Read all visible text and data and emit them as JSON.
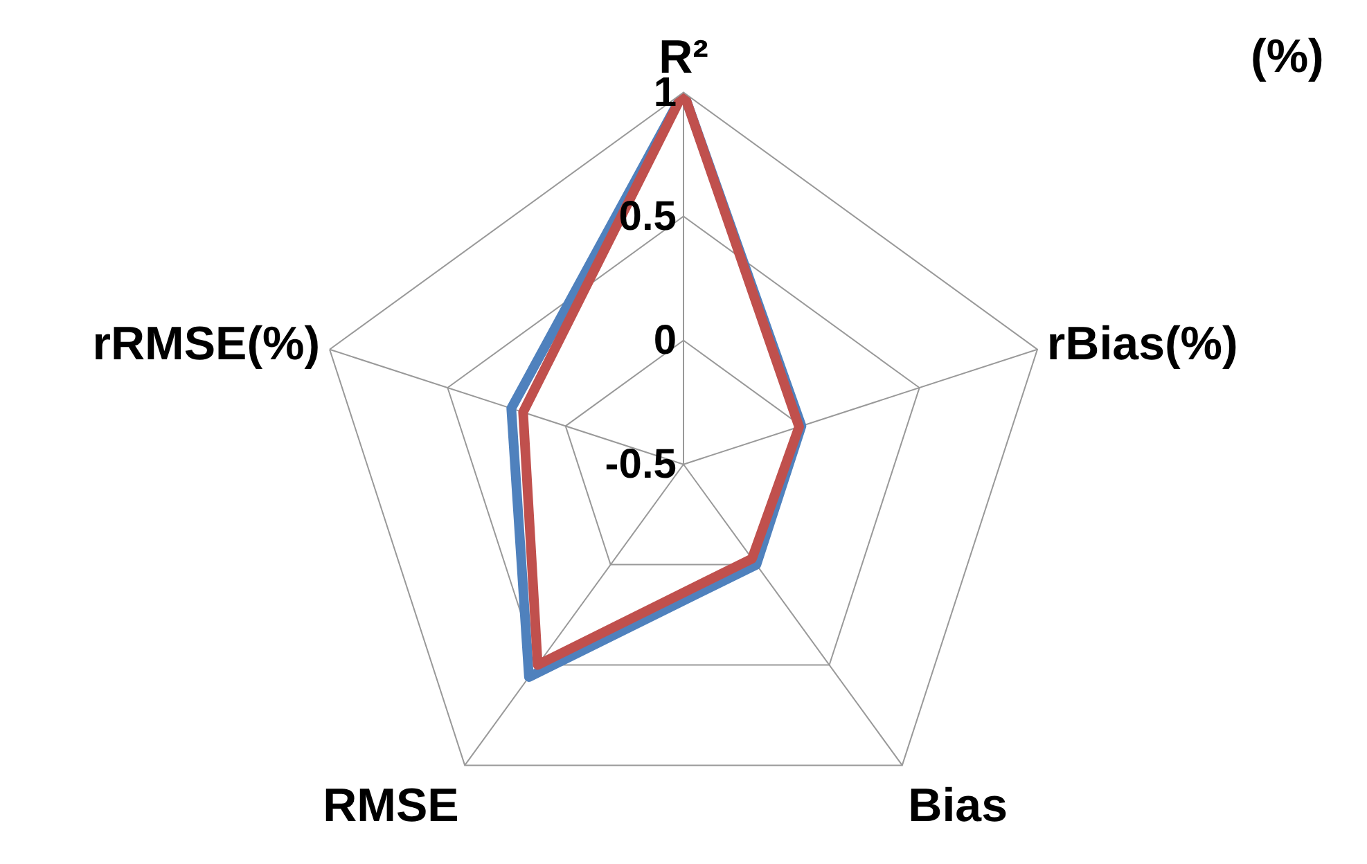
{
  "chart_data": {
    "type": "radar",
    "categories": [
      "R²",
      "rBias(%)",
      "Bias",
      "RMSE",
      "rRMSE(%)"
    ],
    "series": [
      {
        "color": "#4f81bd",
        "values": [
          1,
          0.0,
          0.0,
          0.56,
          0.23
        ]
      },
      {
        "color": "#c0504d",
        "values": [
          1,
          -0.01,
          -0.03,
          0.5,
          0.18
        ]
      }
    ],
    "ylim": [
      -0.5,
      1
    ],
    "yticks": [
      -0.5,
      0,
      0.5,
      1
    ],
    "grid": true,
    "marker": "none",
    "line_style": "solid",
    "annotations": [
      "(%)"
    ]
  }
}
